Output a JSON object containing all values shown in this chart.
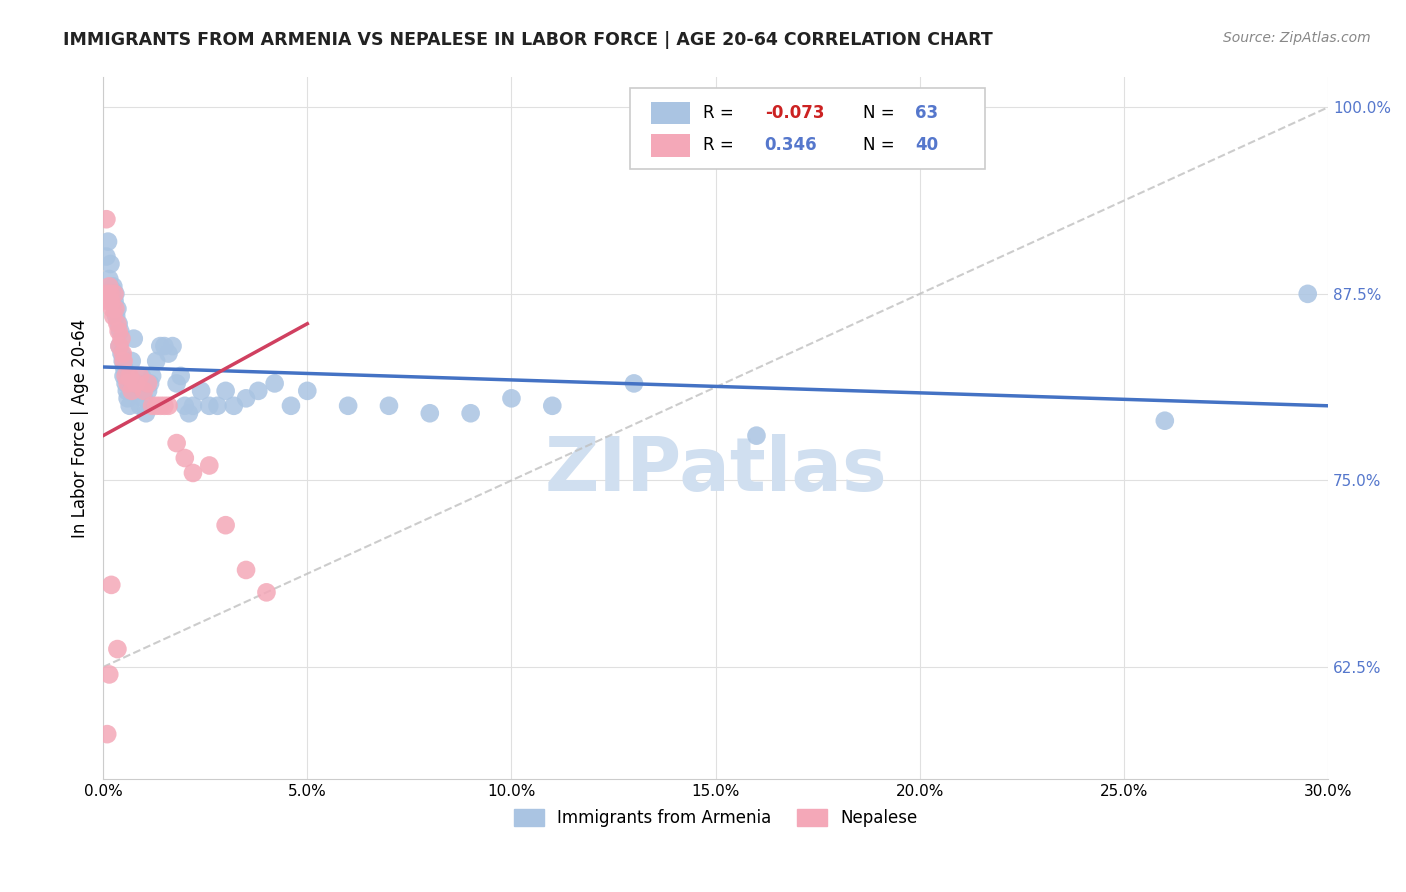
{
  "title": "IMMIGRANTS FROM ARMENIA VS NEPALESE IN LABOR FORCE | AGE 20-64 CORRELATION CHART",
  "source": "Source: ZipAtlas.com",
  "ylabel": "In Labor Force | Age 20-64",
  "xlim": [
    0.0,
    0.3
  ],
  "ylim": [
    0.55,
    1.02
  ],
  "xticks": [
    0.0,
    0.05,
    0.1,
    0.15,
    0.2,
    0.25,
    0.3
  ],
  "xticklabels": [
    "0.0%",
    "5.0%",
    "10.0%",
    "15.0%",
    "20.0%",
    "25.0%",
    "30.0%"
  ],
  "yticks": [
    0.625,
    0.75,
    0.875,
    1.0
  ],
  "yticklabels": [
    "62.5%",
    "75.0%",
    "87.5%",
    "100.0%"
  ],
  "legend_R1": "-0.073",
  "legend_N1": "63",
  "legend_R2": "0.346",
  "legend_N2": "40",
  "armenia_color": "#aac4e2",
  "nepalese_color": "#f4a8b8",
  "armenia_line_color": "#4472C4",
  "nepalese_line_color": "#d04060",
  "title_color": "#222222",
  "axis_tick_color": "#5577cc",
  "grid_color": "#e0e0e0",
  "watermark_color": "#d0dff0",
  "armenia_x": [
    0.0008,
    0.0012,
    0.0015,
    0.0018,
    0.002,
    0.0022,
    0.0025,
    0.0028,
    0.003,
    0.0032,
    0.0035,
    0.0038,
    0.004,
    0.0042,
    0.0045,
    0.0048,
    0.005,
    0.0052,
    0.0055,
    0.0058,
    0.006,
    0.0065,
    0.007,
    0.0075,
    0.008,
    0.0085,
    0.009,
    0.0095,
    0.01,
    0.0105,
    0.011,
    0.0115,
    0.012,
    0.013,
    0.014,
    0.015,
    0.016,
    0.017,
    0.018,
    0.019,
    0.02,
    0.021,
    0.022,
    0.024,
    0.026,
    0.028,
    0.03,
    0.032,
    0.035,
    0.038,
    0.042,
    0.046,
    0.05,
    0.06,
    0.07,
    0.08,
    0.09,
    0.1,
    0.11,
    0.13,
    0.16,
    0.26,
    0.295
  ],
  "armenia_y": [
    0.9,
    0.91,
    0.885,
    0.895,
    0.875,
    0.878,
    0.88,
    0.87,
    0.875,
    0.86,
    0.865,
    0.855,
    0.84,
    0.85,
    0.835,
    0.83,
    0.82,
    0.825,
    0.815,
    0.81,
    0.805,
    0.8,
    0.83,
    0.845,
    0.81,
    0.815,
    0.8,
    0.82,
    0.805,
    0.795,
    0.81,
    0.815,
    0.82,
    0.83,
    0.84,
    0.84,
    0.835,
    0.84,
    0.815,
    0.82,
    0.8,
    0.795,
    0.8,
    0.81,
    0.8,
    0.8,
    0.81,
    0.8,
    0.805,
    0.81,
    0.815,
    0.8,
    0.81,
    0.8,
    0.8,
    0.795,
    0.795,
    0.805,
    0.8,
    0.815,
    0.78,
    0.79,
    0.875
  ],
  "nepalese_x": [
    0.0008,
    0.0012,
    0.0015,
    0.0018,
    0.002,
    0.0022,
    0.0025,
    0.0028,
    0.003,
    0.0035,
    0.0038,
    0.004,
    0.0045,
    0.0048,
    0.005,
    0.0055,
    0.006,
    0.0065,
    0.007,
    0.008,
    0.009,
    0.01,
    0.011,
    0.012,
    0.013,
    0.014,
    0.015,
    0.016,
    0.018,
    0.02,
    0.022,
    0.026,
    0.03,
    0.035,
    0.04,
    0.002,
    0.0035,
    0.001,
    0.0015,
    0.0008
  ],
  "nepalese_y": [
    0.875,
    0.87,
    0.88,
    0.875,
    0.87,
    0.865,
    0.86,
    0.875,
    0.865,
    0.855,
    0.85,
    0.84,
    0.845,
    0.835,
    0.83,
    0.82,
    0.815,
    0.82,
    0.81,
    0.815,
    0.82,
    0.81,
    0.815,
    0.8,
    0.8,
    0.8,
    0.8,
    0.8,
    0.775,
    0.765,
    0.755,
    0.76,
    0.72,
    0.69,
    0.675,
    0.68,
    0.637,
    0.58,
    0.62,
    0.925
  ],
  "armenia_line_x": [
    0.0,
    0.3
  ],
  "armenia_line_y": [
    0.826,
    0.8
  ],
  "nepalese_line_x": [
    0.0,
    0.05
  ],
  "nepalese_line_y": [
    0.78,
    0.855
  ],
  "ref_line_x": [
    0.0,
    0.3
  ],
  "ref_line_y": [
    0.625,
    1.0
  ]
}
